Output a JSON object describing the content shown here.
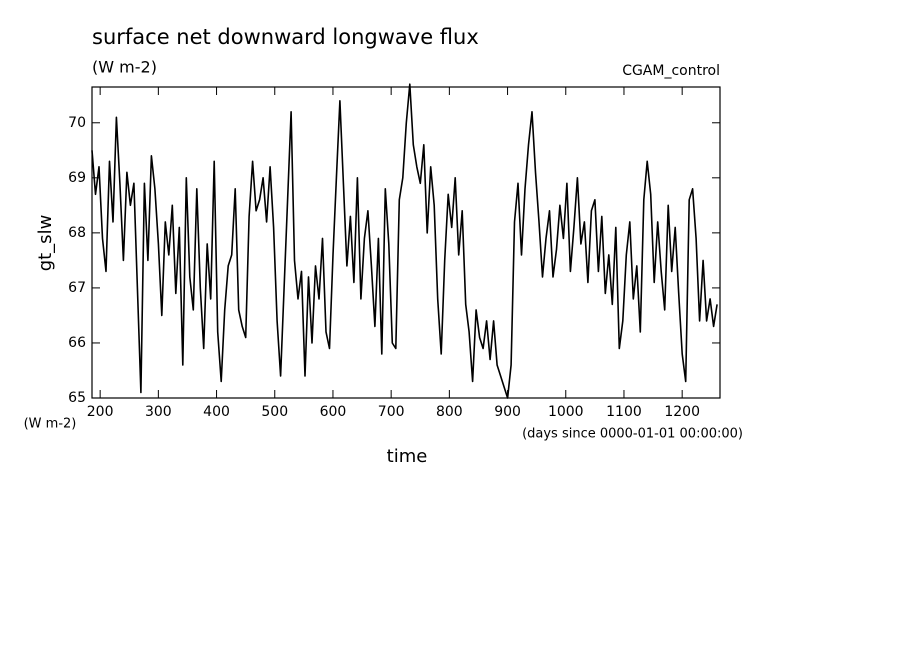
{
  "chart_data": {
    "type": "line",
    "title": "surface net downward longwave flux",
    "subtitle": "(W m-2)",
    "dataset_label": "CGAM_control",
    "y_label": "gt_slw",
    "y_units": "(W m-2)",
    "x_label": "time",
    "x_units": "(days since 0000-01-01 00:00:00)",
    "xlim": [
      186,
      1265
    ],
    "ylim": [
      65,
      70.65
    ],
    "xticks": [
      200,
      300,
      400,
      500,
      600,
      700,
      800,
      900,
      1000,
      1100,
      1200
    ],
    "yticks": [
      65,
      66,
      67,
      68,
      69,
      70
    ],
    "x": [
      186,
      192,
      198,
      204,
      210,
      216,
      222,
      228,
      234,
      240,
      246,
      252,
      258,
      264,
      270,
      276,
      282,
      288,
      294,
      300,
      306,
      312,
      318,
      324,
      330,
      336,
      342,
      348,
      354,
      360,
      366,
      372,
      378,
      384,
      390,
      396,
      402,
      408,
      414,
      420,
      426,
      432,
      438,
      444,
      450,
      456,
      462,
      468,
      474,
      480,
      486,
      492,
      498,
      504,
      510,
      516,
      522,
      528,
      534,
      540,
      546,
      552,
      558,
      564,
      570,
      576,
      582,
      588,
      594,
      600,
      606,
      612,
      618,
      624,
      630,
      636,
      642,
      648,
      654,
      660,
      666,
      672,
      678,
      684,
      690,
      696,
      702,
      708,
      714,
      720,
      726,
      732,
      738,
      744,
      750,
      756,
      762,
      768,
      774,
      780,
      786,
      792,
      798,
      804,
      810,
      816,
      822,
      828,
      834,
      840,
      846,
      852,
      858,
      864,
      870,
      876,
      882,
      888,
      894,
      900,
      906,
      912,
      918,
      924,
      930,
      936,
      942,
      948,
      954,
      960,
      966,
      972,
      978,
      984,
      990,
      996,
      1002,
      1008,
      1014,
      1020,
      1026,
      1032,
      1038,
      1044,
      1050,
      1056,
      1062,
      1068,
      1074,
      1080,
      1086,
      1092,
      1098,
      1104,
      1110,
      1116,
      1122,
      1128,
      1134,
      1140,
      1146,
      1152,
      1158,
      1164,
      1170,
      1176,
      1182,
      1188,
      1194,
      1200,
      1206,
      1212,
      1218,
      1224,
      1230,
      1236,
      1242,
      1248,
      1254,
      1260
    ],
    "series": [
      {
        "color": "#000000",
        "values": [
          69.5,
          68.7,
          69.2,
          67.9,
          67.3,
          69.3,
          68.2,
          70.1,
          68.9,
          67.5,
          69.1,
          68.5,
          68.9,
          67.0,
          65.1,
          68.9,
          67.5,
          69.4,
          68.8,
          67.8,
          66.5,
          68.2,
          67.6,
          68.5,
          66.9,
          68.1,
          65.6,
          69.0,
          67.2,
          66.6,
          68.8,
          67.0,
          65.9,
          67.8,
          66.8,
          69.3,
          66.2,
          65.3,
          66.6,
          67.4,
          67.6,
          68.8,
          66.6,
          66.3,
          66.1,
          68.3,
          69.3,
          68.4,
          68.6,
          69.0,
          68.2,
          69.2,
          68.1,
          66.4,
          65.4,
          67.0,
          68.6,
          70.2,
          67.5,
          66.8,
          67.3,
          65.4,
          67.2,
          66.0,
          67.4,
          66.8,
          67.9,
          66.2,
          65.9,
          67.6,
          69.0,
          70.4,
          68.9,
          67.4,
          68.3,
          67.1,
          69.0,
          66.8,
          67.9,
          68.4,
          67.4,
          66.3,
          67.9,
          65.8,
          68.8,
          67.8,
          66.0,
          65.9,
          68.6,
          69.0,
          70.0,
          70.7,
          69.6,
          69.2,
          68.9,
          69.6,
          68.0,
          69.2,
          68.5,
          66.8,
          65.8,
          67.5,
          68.7,
          68.1,
          69.0,
          67.6,
          68.4,
          66.7,
          66.2,
          65.3,
          66.6,
          66.1,
          65.9,
          66.4,
          65.7,
          66.4,
          65.6,
          65.4,
          65.2,
          65.0,
          65.6,
          68.2,
          68.9,
          67.6,
          68.8,
          69.6,
          70.2,
          69.1,
          68.2,
          67.2,
          67.9,
          68.4,
          67.2,
          67.7,
          68.5,
          67.9,
          68.9,
          67.3,
          68.1,
          69.0,
          67.8,
          68.2,
          67.1,
          68.4,
          68.6,
          67.3,
          68.3,
          66.9,
          67.6,
          66.7,
          68.1,
          65.9,
          66.4,
          67.6,
          68.2,
          66.8,
          67.4,
          66.2,
          68.6,
          69.3,
          68.7,
          67.1,
          68.2,
          67.3,
          66.6,
          68.5,
          67.3,
          68.1,
          66.9,
          65.8,
          65.3,
          68.6,
          68.8,
          67.9,
          66.4,
          67.5,
          66.4,
          66.8,
          66.3,
          66.7
        ]
      }
    ]
  }
}
